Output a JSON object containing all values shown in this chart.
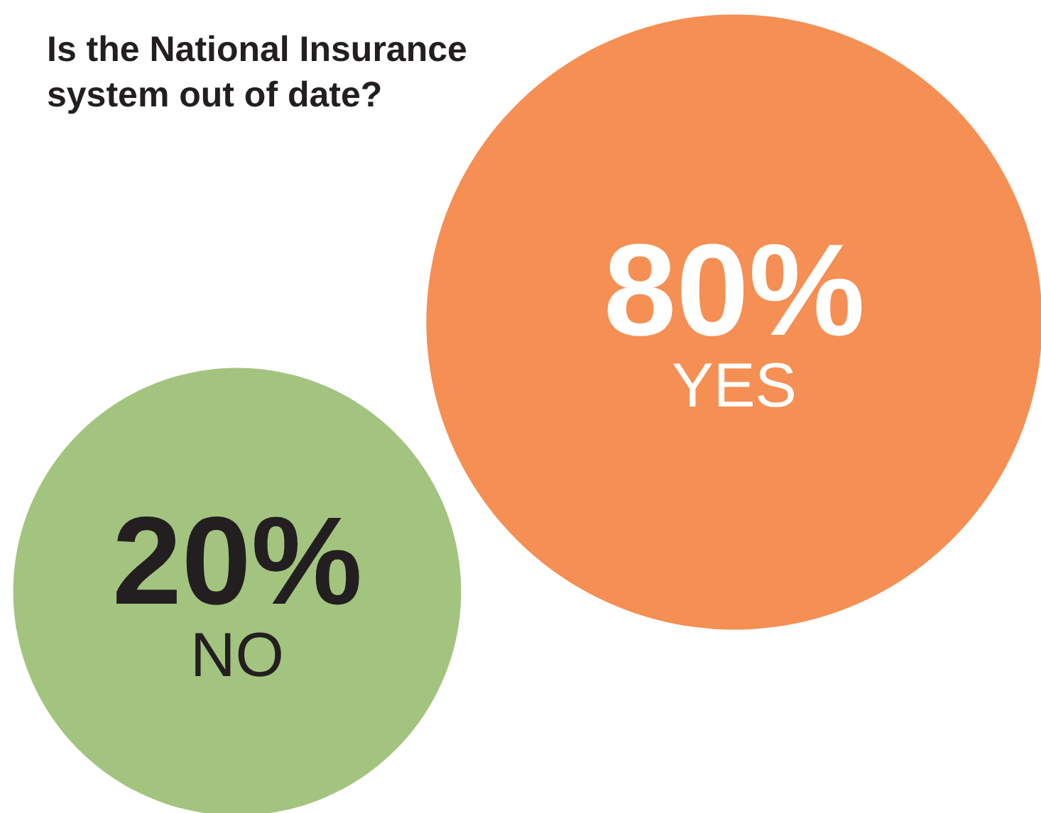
{
  "chart_data": {
    "type": "other",
    "title": "Is the National Insurance system out of date?",
    "categories": [
      "YES",
      "NO"
    ],
    "values": [
      80,
      20
    ],
    "value_labels": [
      "80%",
      "20%"
    ],
    "colors": [
      "#f58f53",
      "#a3c47e"
    ]
  }
}
